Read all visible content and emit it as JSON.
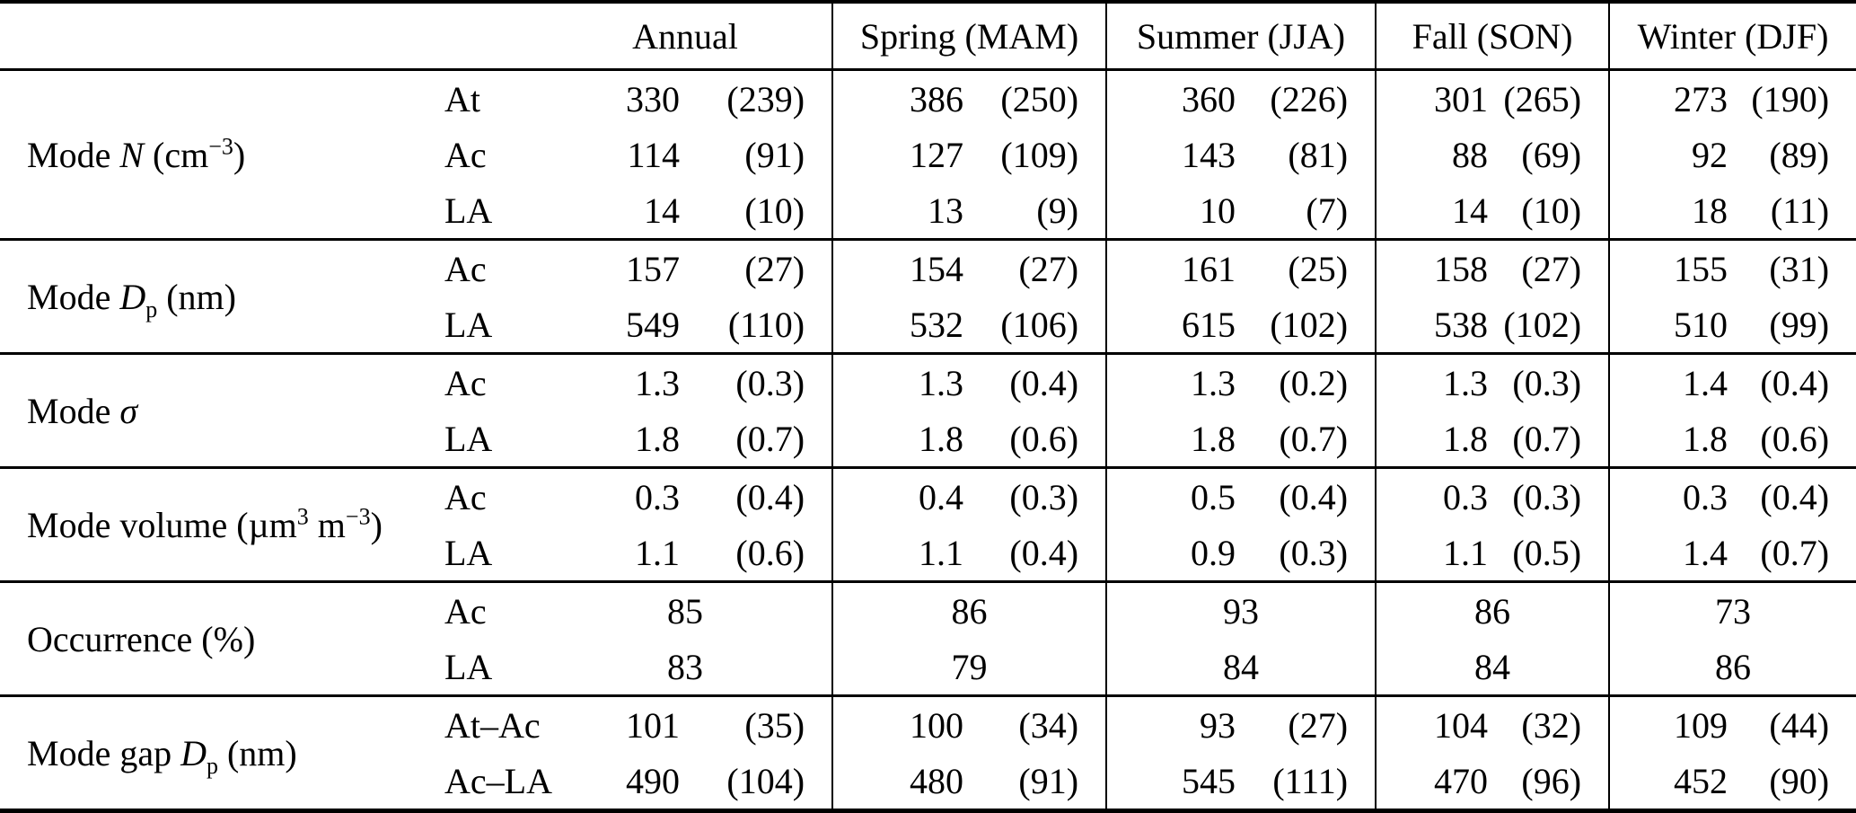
{
  "colors": {
    "text": "#000000",
    "rules": "#000000",
    "background": "#ffffff"
  },
  "table": {
    "header": {
      "season_columns": [
        "Annual",
        "Spring (MAM)",
        "Summer (JJA)",
        "Fall (SON)",
        "Winter (DJF)"
      ]
    },
    "sections": [
      {
        "label_html": "Mode <i>N</i> (cm<sup>−3</sup>)",
        "label_text": "Mode N (cm-3)",
        "rows": [
          {
            "mode": "At",
            "values": [
              [
                "330",
                "(239)"
              ],
              [
                "386",
                "(250)"
              ],
              [
                "360",
                "(226)"
              ],
              [
                "301",
                "(265)"
              ],
              [
                "273",
                "(190)"
              ]
            ]
          },
          {
            "mode": "Ac",
            "values": [
              [
                "114",
                "(91)"
              ],
              [
                "127",
                "(109)"
              ],
              [
                "143",
                "(81)"
              ],
              [
                "88",
                "(69)"
              ],
              [
                "92",
                "(89)"
              ]
            ]
          },
          {
            "mode": "LA",
            "values": [
              [
                "14",
                "(10)"
              ],
              [
                "13",
                "(9)"
              ],
              [
                "10",
                "(7)"
              ],
              [
                "14",
                "(10)"
              ],
              [
                "18",
                "(11)"
              ]
            ]
          }
        ]
      },
      {
        "label_html": "Mode <i>D</i><sub>p</sub> (nm)",
        "label_text": "Mode Dp (nm)",
        "rows": [
          {
            "mode": "Ac",
            "values": [
              [
                "157",
                "(27)"
              ],
              [
                "154",
                "(27)"
              ],
              [
                "161",
                "(25)"
              ],
              [
                "158",
                "(27)"
              ],
              [
                "155",
                "(31)"
              ]
            ]
          },
          {
            "mode": "LA",
            "values": [
              [
                "549",
                "(110)"
              ],
              [
                "532",
                "(106)"
              ],
              [
                "615",
                "(102)"
              ],
              [
                "538",
                "(102)"
              ],
              [
                "510",
                "(99)"
              ]
            ]
          }
        ]
      },
      {
        "label_html": "Mode <i>σ</i>",
        "label_text": "Mode sigma",
        "rows": [
          {
            "mode": "Ac",
            "values": [
              [
                "1.3",
                "(0.3)"
              ],
              [
                "1.3",
                "(0.4)"
              ],
              [
                "1.3",
                "(0.2)"
              ],
              [
                "1.3",
                "(0.3)"
              ],
              [
                "1.4",
                "(0.4)"
              ]
            ]
          },
          {
            "mode": "LA",
            "values": [
              [
                "1.8",
                "(0.7)"
              ],
              [
                "1.8",
                "(0.6)"
              ],
              [
                "1.8",
                "(0.7)"
              ],
              [
                "1.8",
                "(0.7)"
              ],
              [
                "1.8",
                "(0.6)"
              ]
            ]
          }
        ]
      },
      {
        "label_html": "Mode volume (µm<sup>3</sup> m<sup>−3</sup>)",
        "label_text": "Mode volume (um3 m-3)",
        "rows": [
          {
            "mode": "Ac",
            "values": [
              [
                "0.3",
                "(0.4)"
              ],
              [
                "0.4",
                "(0.3)"
              ],
              [
                "0.5",
                "(0.4)"
              ],
              [
                "0.3",
                "(0.3)"
              ],
              [
                "0.3",
                "(0.4)"
              ]
            ]
          },
          {
            "mode": "LA",
            "values": [
              [
                "1.1",
                "(0.6)"
              ],
              [
                "1.1",
                "(0.4)"
              ],
              [
                "0.9",
                "(0.3)"
              ],
              [
                "1.1",
                "(0.5)"
              ],
              [
                "1.4",
                "(0.7)"
              ]
            ]
          }
        ]
      },
      {
        "label_html": "Occurrence (%)",
        "label_text": "Occurrence (%)",
        "rows": [
          {
            "mode": "Ac",
            "values": [
              "85",
              "86",
              "93",
              "86",
              "73"
            ]
          },
          {
            "mode": "LA",
            "values": [
              "83",
              "79",
              "84",
              "84",
              "86"
            ]
          }
        ]
      },
      {
        "label_html": "Mode gap <i>D</i><sub>p</sub> (nm)",
        "label_text": "Mode gap Dp (nm)",
        "rows": [
          {
            "mode": "At–Ac",
            "values": [
              [
                "101",
                "(35)"
              ],
              [
                "100",
                "(34)"
              ],
              [
                "93",
                "(27)"
              ],
              [
                "104",
                "(32)"
              ],
              [
                "109",
                "(44)"
              ]
            ]
          },
          {
            "mode": "Ac–LA",
            "values": [
              [
                "490",
                "(104)"
              ],
              [
                "480",
                "(91)"
              ],
              [
                "545",
                "(111)"
              ],
              [
                "470",
                "(96)"
              ],
              [
                "452",
                "(90)"
              ]
            ]
          }
        ]
      }
    ]
  }
}
